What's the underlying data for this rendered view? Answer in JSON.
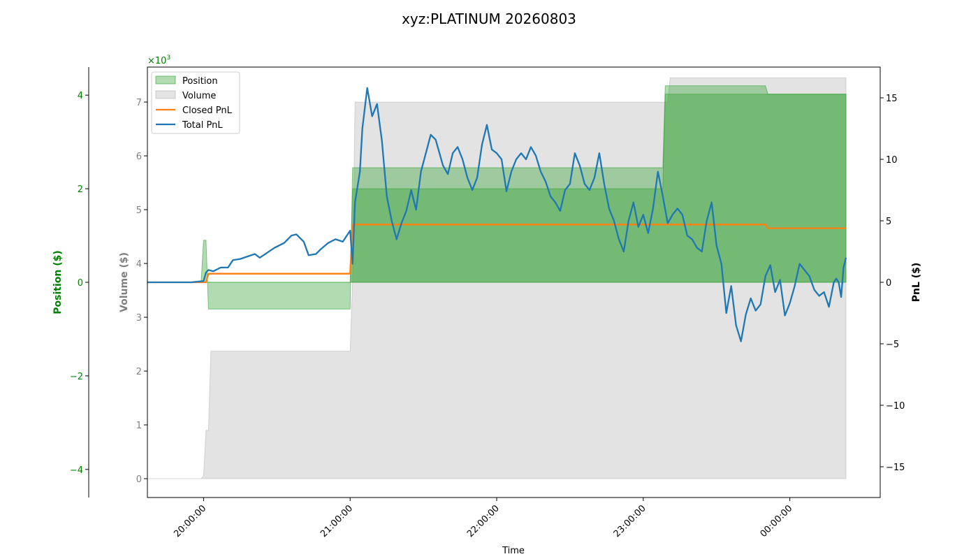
{
  "chart_data": {
    "type": "area",
    "title": "xyz:PLATINUM 20260803",
    "xlabel": "Time",
    "x_ticks": [
      "20:00:00",
      "21:00:00",
      "22:00:00",
      "23:00:00",
      "00:00:00"
    ],
    "xlim": [
      "19:37",
      "00:37"
    ],
    "axes": {
      "position": {
        "label": "Position ($)",
        "color": "#008000",
        "ylim": [
          -4.6,
          4.6
        ],
        "ticks": [
          4,
          2,
          0,
          -2,
          -4
        ],
        "tick_labels": [
          "4",
          "2",
          "0",
          "−2",
          "−4"
        ],
        "scale_label": "×10³",
        "scale_exp": "3"
      },
      "volume": {
        "label": "Volume ($)",
        "color": "#808080",
        "ylim": [
          -0.35,
          7.65
        ],
        "ticks": [
          0,
          1,
          2,
          3,
          4,
          5,
          6,
          7
        ],
        "tick_labels": [
          "0",
          "1",
          "2",
          "3",
          "4",
          "5",
          "6",
          "7"
        ]
      },
      "pnl": {
        "label": "PnL ($)",
        "color": "#000000",
        "ylim": [
          -17.5,
          17.5
        ],
        "ticks": [
          15,
          10,
          5,
          0,
          -5,
          -10,
          -15
        ],
        "tick_labels": [
          "15",
          "10",
          "5",
          "0",
          "−5",
          "−10",
          "−15"
        ]
      }
    },
    "legend": {
      "placement": "top-left",
      "entries": [
        {
          "label": "Position",
          "kind": "patch",
          "color": "#2ca02c"
        },
        {
          "label": "Volume",
          "kind": "patch",
          "color": "#b0b0b0"
        },
        {
          "label": "Closed PnL",
          "kind": "line",
          "color": "#ff7f0e"
        },
        {
          "label": "Total PnL",
          "kind": "line",
          "color": "#1f77b4"
        }
      ]
    },
    "series": [
      {
        "name": "Volume",
        "axis": "volume",
        "color": "#b0b0b0",
        "style": "step-area",
        "points": [
          [
            "19:37",
            0
          ],
          [
            "19:59",
            0
          ],
          [
            "20:00",
            0.05
          ],
          [
            "20:01",
            0.9
          ],
          [
            "20:02",
            0.9
          ],
          [
            "20:03",
            2.37
          ],
          [
            "21:00",
            2.37
          ],
          [
            "21:01",
            3.65
          ],
          [
            "21:02",
            7.0
          ],
          [
            "23:10",
            7.0
          ],
          [
            "23:11",
            7.45
          ],
          [
            "00:23",
            7.45
          ]
        ]
      },
      {
        "name": "Position",
        "axis": "position",
        "color": "#2ca02c",
        "style": "step-area",
        "points": [
          [
            "19:37",
            0
          ],
          [
            "19:59",
            0
          ],
          [
            "20:00",
            0.9
          ],
          [
            "20:01",
            0.9
          ],
          [
            "20:02",
            -0.57
          ],
          [
            "21:00",
            -0.57
          ],
          [
            "21:01",
            2.45
          ],
          [
            "21:02",
            2.45
          ],
          [
            "23:08",
            2.45
          ],
          [
            "23:09",
            4.2
          ],
          [
            "23:50",
            4.2
          ],
          [
            "23:51",
            4.02
          ],
          [
            "00:23",
            4.02
          ]
        ]
      },
      {
        "name": "Position (secondary)",
        "axis": "position",
        "color": "#2ca02c",
        "style": "step-area",
        "points": [
          [
            "19:37",
            0
          ],
          [
            "21:00",
            0
          ],
          [
            "21:01",
            2.0
          ],
          [
            "21:02",
            2.0
          ],
          [
            "23:08",
            2.0
          ],
          [
            "23:09",
            4.02
          ],
          [
            "00:23",
            4.02
          ]
        ]
      },
      {
        "name": "Closed PnL",
        "axis": "pnl",
        "color": "#ff7f0e",
        "style": "step-line",
        "points": [
          [
            "19:37",
            0
          ],
          [
            "20:01",
            0
          ],
          [
            "20:02",
            0.7
          ],
          [
            "21:00",
            0.7
          ],
          [
            "21:01",
            4.7
          ],
          [
            "23:50",
            4.7
          ],
          [
            "23:51",
            4.4
          ],
          [
            "00:23",
            4.4
          ]
        ]
      },
      {
        "name": "Total PnL",
        "axis": "pnl",
        "color": "#1f77b4",
        "style": "line",
        "points": [
          [
            "19:37",
            0
          ],
          [
            "19:45",
            0
          ],
          [
            "19:55",
            0
          ],
          [
            "20:00",
            0.1
          ],
          [
            "20:01",
            0.8
          ],
          [
            "20:02",
            1.0
          ],
          [
            "20:04",
            0.9
          ],
          [
            "20:07",
            1.2
          ],
          [
            "20:10",
            1.2
          ],
          [
            "20:12",
            1.8
          ],
          [
            "20:15",
            1.9
          ],
          [
            "20:18",
            2.1
          ],
          [
            "20:21",
            2.3
          ],
          [
            "20:23",
            2.0
          ],
          [
            "20:26",
            2.4
          ],
          [
            "20:29",
            2.8
          ],
          [
            "20:33",
            3.2
          ],
          [
            "20:36",
            3.8
          ],
          [
            "20:38",
            3.9
          ],
          [
            "20:41",
            3.3
          ],
          [
            "20:43",
            2.2
          ],
          [
            "20:46",
            2.3
          ],
          [
            "20:48",
            2.7
          ],
          [
            "20:51",
            3.2
          ],
          [
            "20:54",
            3.5
          ],
          [
            "20:57",
            3.3
          ],
          [
            "21:00",
            4.2
          ],
          [
            "21:01",
            1.5
          ],
          [
            "21:02",
            6.5
          ],
          [
            "21:04",
            9.0
          ],
          [
            "21:05",
            12.5
          ],
          [
            "21:07",
            15.8
          ],
          [
            "21:09",
            13.5
          ],
          [
            "21:11",
            14.5
          ],
          [
            "21:13",
            11.5
          ],
          [
            "21:15",
            7.0
          ],
          [
            "21:17",
            5.0
          ],
          [
            "21:19",
            3.5
          ],
          [
            "21:21",
            4.8
          ],
          [
            "21:23",
            5.8
          ],
          [
            "21:25",
            7.5
          ],
          [
            "21:27",
            5.9
          ],
          [
            "21:29",
            9.0
          ],
          [
            "21:31",
            10.5
          ],
          [
            "21:33",
            12.0
          ],
          [
            "21:35",
            11.6
          ],
          [
            "21:38",
            9.5
          ],
          [
            "21:40",
            8.8
          ],
          [
            "21:42",
            10.5
          ],
          [
            "21:44",
            11.0
          ],
          [
            "21:46",
            10.0
          ],
          [
            "21:48",
            8.5
          ],
          [
            "21:50",
            7.5
          ],
          [
            "21:52",
            8.5
          ],
          [
            "21:54",
            11.2
          ],
          [
            "21:56",
            12.8
          ],
          [
            "21:58",
            10.8
          ],
          [
            "22:00",
            10.5
          ],
          [
            "22:02",
            10.0
          ],
          [
            "22:04",
            7.4
          ],
          [
            "22:06",
            9.0
          ],
          [
            "22:08",
            10.0
          ],
          [
            "22:10",
            10.5
          ],
          [
            "22:12",
            10.0
          ],
          [
            "22:14",
            11.0
          ],
          [
            "22:16",
            10.3
          ],
          [
            "22:18",
            9.0
          ],
          [
            "22:20",
            8.2
          ],
          [
            "22:22",
            7.0
          ],
          [
            "22:24",
            6.5
          ],
          [
            "22:26",
            5.8
          ],
          [
            "22:28",
            7.5
          ],
          [
            "22:30",
            8.0
          ],
          [
            "22:32",
            10.5
          ],
          [
            "22:34",
            9.5
          ],
          [
            "22:36",
            8.0
          ],
          [
            "22:38",
            7.5
          ],
          [
            "22:40",
            8.5
          ],
          [
            "22:42",
            10.5
          ],
          [
            "22:44",
            8.0
          ],
          [
            "22:46",
            6.0
          ],
          [
            "22:48",
            5.0
          ],
          [
            "22:50",
            3.5
          ],
          [
            "22:52",
            2.5
          ],
          [
            "22:54",
            5.0
          ],
          [
            "22:56",
            6.5
          ],
          [
            "22:58",
            4.5
          ],
          [
            "23:00",
            5.5
          ],
          [
            "23:02",
            4.0
          ],
          [
            "23:04",
            6.0
          ],
          [
            "23:06",
            9.0
          ],
          [
            "23:08",
            7.0
          ],
          [
            "23:10",
            4.8
          ],
          [
            "23:12",
            5.5
          ],
          [
            "23:14",
            6.0
          ],
          [
            "23:16",
            5.5
          ],
          [
            "23:18",
            3.8
          ],
          [
            "23:20",
            3.5
          ],
          [
            "23:22",
            2.8
          ],
          [
            "23:24",
            2.5
          ],
          [
            "23:26",
            5.0
          ],
          [
            "23:28",
            6.5
          ],
          [
            "23:30",
            3.0
          ],
          [
            "23:32",
            1.5
          ],
          [
            "23:34",
            -2.5
          ],
          [
            "23:36",
            -0.3
          ],
          [
            "23:38",
            -3.5
          ],
          [
            "23:40",
            -4.8
          ],
          [
            "23:42",
            -2.6
          ],
          [
            "23:44",
            -1.3
          ],
          [
            "23:46",
            -2.3
          ],
          [
            "23:48",
            -1.8
          ],
          [
            "23:50",
            0.5
          ],
          [
            "23:52",
            1.4
          ],
          [
            "23:54",
            -0.8
          ],
          [
            "23:56",
            0.2
          ],
          [
            "23:58",
            -2.7
          ],
          [
            "00:00",
            -1.7
          ],
          [
            "00:02",
            -0.3
          ],
          [
            "00:04",
            1.5
          ],
          [
            "00:06",
            1.0
          ],
          [
            "00:08",
            0.5
          ],
          [
            "00:10",
            -0.6
          ],
          [
            "00:12",
            -1.1
          ],
          [
            "00:14",
            -0.8
          ],
          [
            "00:16",
            -2.0
          ],
          [
            "00:18",
            0.0
          ],
          [
            "00:19",
            0.3
          ],
          [
            "00:20",
            0.0
          ],
          [
            "00:21",
            -1.2
          ],
          [
            "00:22",
            1.2
          ],
          [
            "00:23",
            2.0
          ]
        ]
      }
    ]
  }
}
